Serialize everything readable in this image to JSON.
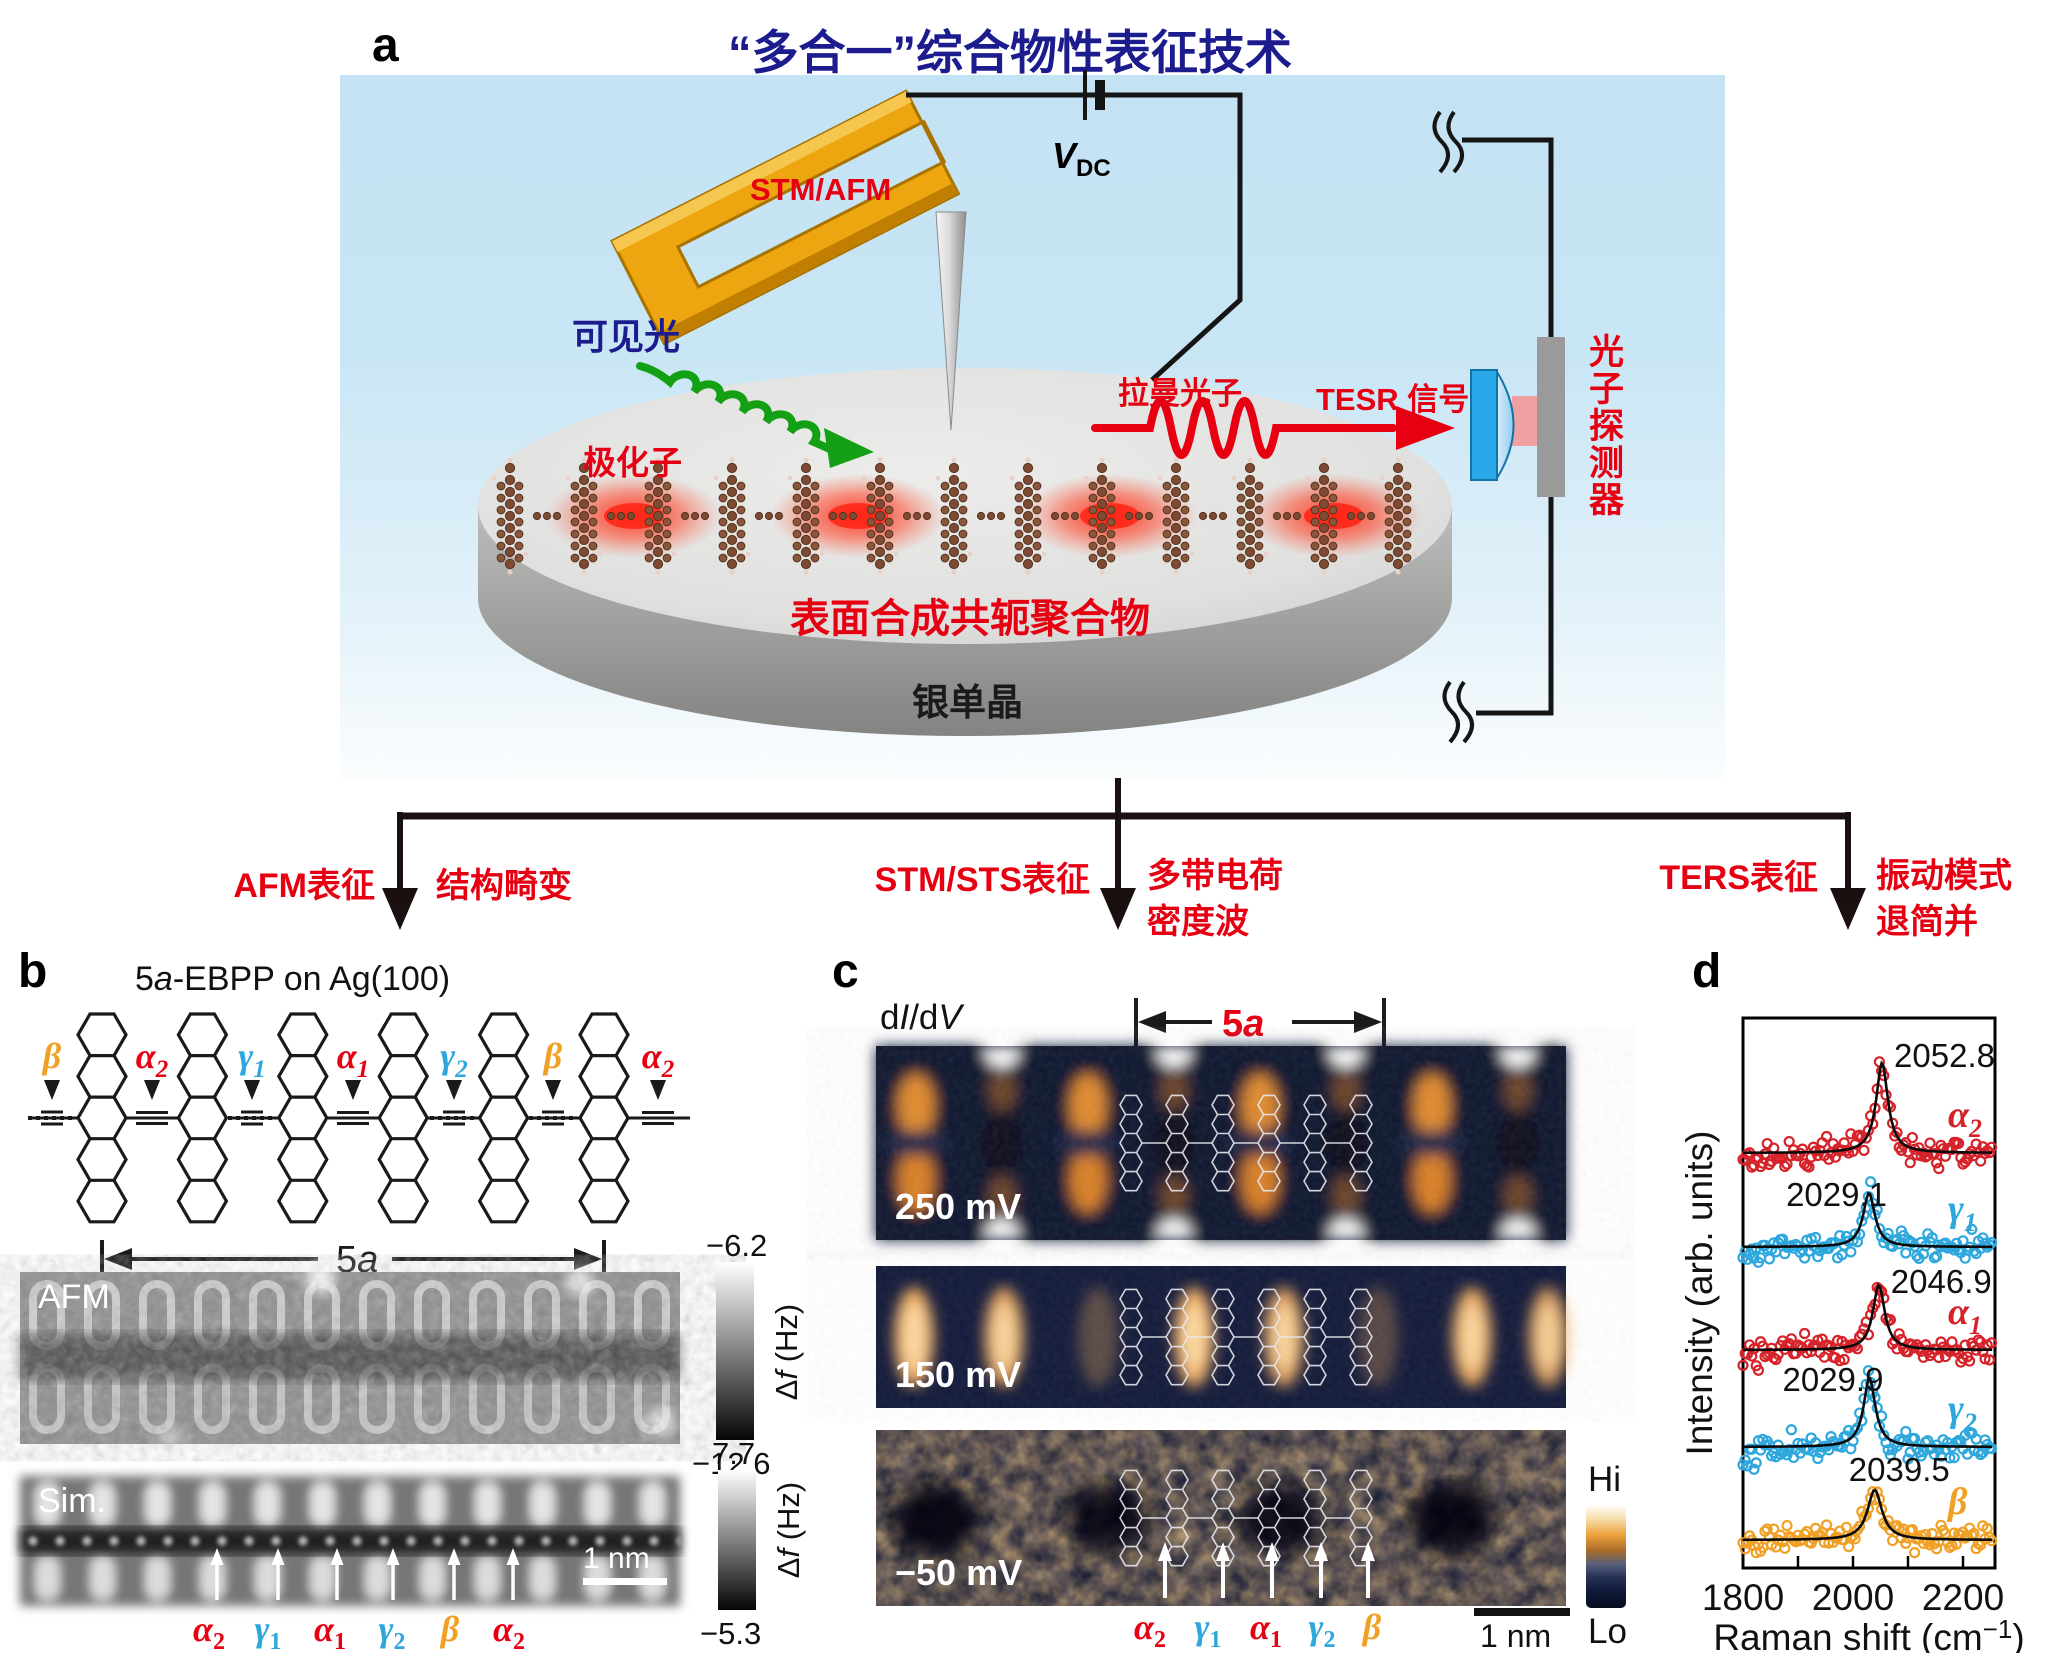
{
  "colors": {
    "red": "#e60012",
    "scatter_red": "#d6232a",
    "cyan": "#2ea7dd",
    "orange": "#f0a125",
    "navy": "#1d1c8f",
    "gold": "#eda60f",
    "green": "#14a014",
    "wire": "#151515",
    "stm_bg": "#10172f",
    "stm_orange": "#e79032"
  },
  "panel_a": {
    "label": "a",
    "title": "“多合一”综合物性表征技术",
    "stm_afm": "STM/AFM",
    "vdc": {
      "base": "V",
      "sub": "DC"
    },
    "visible_light": "可见光",
    "polaron": "极化子",
    "raman_photon": "拉曼光子",
    "tesr_signal": "TESR 信号",
    "photon_detector": "光子探测器",
    "polymer": "表面合成共轭聚合物",
    "silver": "银单晶",
    "branches": [
      {
        "method": "AFM表征",
        "result1": "结构畸变",
        "result2": ""
      },
      {
        "method": "STM/STS表征",
        "result1": "多带电荷",
        "result2": "密度波"
      },
      {
        "method": "TERS表征",
        "result1": "振动模式",
        "result2": "退简并"
      }
    ]
  },
  "panel_b": {
    "label": "b",
    "title": {
      "pre": "5",
      "em": "a",
      "post": "-EBPP on Ag(100)"
    },
    "structure_sites": [
      {
        "g": "β",
        "sub": "",
        "ck": "orange"
      },
      {
        "g": "α",
        "sub": "2",
        "ck": "red"
      },
      {
        "g": "γ",
        "sub": "1",
        "ck": "cyan"
      },
      {
        "g": "α",
        "sub": "1",
        "ck": "red"
      },
      {
        "g": "γ",
        "sub": "2",
        "ck": "cyan"
      },
      {
        "g": "β",
        "sub": "",
        "ck": "orange"
      },
      {
        "g": "α",
        "sub": "2",
        "ck": "red"
      }
    ],
    "span_label": {
      "pre": "5",
      "em": "a"
    },
    "afm": {
      "label": "AFM",
      "cbar_top": "−6.2",
      "cbar_bottom": "−12.6"
    },
    "sim": {
      "label": "Sim.",
      "cbar_top": "7.7",
      "cbar_bottom": "−5.3",
      "scalebar": "1 nm"
    },
    "cbar_unit": {
      "pre": "Δ",
      "em": "f",
      "post": " (Hz)"
    },
    "bottom_sites": [
      {
        "g": "α",
        "sub": "2",
        "ck": "red"
      },
      {
        "g": "γ",
        "sub": "1",
        "ck": "cyan"
      },
      {
        "g": "α",
        "sub": "1",
        "ck": "red"
      },
      {
        "g": "γ",
        "sub": "2",
        "ck": "cyan"
      },
      {
        "g": "β",
        "sub": "",
        "ck": "orange"
      },
      {
        "g": "α",
        "sub": "2",
        "ck": "red"
      }
    ]
  },
  "panel_c": {
    "label": "c",
    "didv": {
      "p1": "d",
      "i1": "I",
      "p2": "/d",
      "i2": "V"
    },
    "span_label": {
      "pre": "5",
      "em": "a"
    },
    "voltages": [
      "250 mV",
      "150 mV",
      "−50 mV"
    ],
    "cbar": {
      "hi": "Hi",
      "lo": "Lo"
    },
    "scalebar": "1 nm",
    "bottom_sites": [
      {
        "g": "α",
        "sub": "2",
        "ck": "red"
      },
      {
        "g": "γ",
        "sub": "1",
        "ck": "cyan"
      },
      {
        "g": "α",
        "sub": "1",
        "ck": "red"
      },
      {
        "g": "γ",
        "sub": "2",
        "ck": "cyan"
      },
      {
        "g": "β",
        "sub": "",
        "ck": "orange"
      }
    ]
  },
  "chart_data": {
    "type": "scatter",
    "title": "",
    "xlabel": {
      "pre": "Raman shift (cm",
      "sup": "−1",
      "post": ")"
    },
    "ylabel": "Intensity (arb. units)",
    "xlim": [
      1800,
      2255
    ],
    "x_ticks": [
      1800,
      1900,
      2000,
      2100,
      2200
    ],
    "x_tick_labels": [
      1800,
      2000,
      2200
    ],
    "legend_position": "right-of-each-curve",
    "grid": false,
    "series": [
      {
        "name": {
          "g": "α",
          "sub": "2",
          "ck": "red"
        },
        "peak_center": 2052.8,
        "annotation": "2052.8",
        "amplitude": 90,
        "linewidth_cm": 13,
        "fit": "Lorentzian"
      },
      {
        "name": {
          "g": "γ",
          "sub": "1",
          "ck": "cyan"
        },
        "peak_center": 2029.1,
        "annotation": "2029.1",
        "amplitude": 54,
        "linewidth_cm": 13,
        "fit": "Lorentzian"
      },
      {
        "name": {
          "g": "α",
          "sub": "1",
          "ck": "red"
        },
        "peak_center": 2046.9,
        "annotation": "2046.9",
        "amplitude": 65,
        "linewidth_cm": 13,
        "fit": "Lorentzian"
      },
      {
        "name": {
          "g": "γ",
          "sub": "2",
          "ck": "cyan"
        },
        "peak_center": 2029.9,
        "annotation": "2029.9",
        "amplitude": 69,
        "linewidth_cm": 13,
        "fit": "Lorentzian"
      },
      {
        "name": {
          "g": "β",
          "sub": "",
          "ck": "orange"
        },
        "peak_center": 2039.5,
        "annotation": "2039.5",
        "amplitude": 50,
        "linewidth_cm": 16,
        "fit": "Lorentzian"
      }
    ]
  }
}
